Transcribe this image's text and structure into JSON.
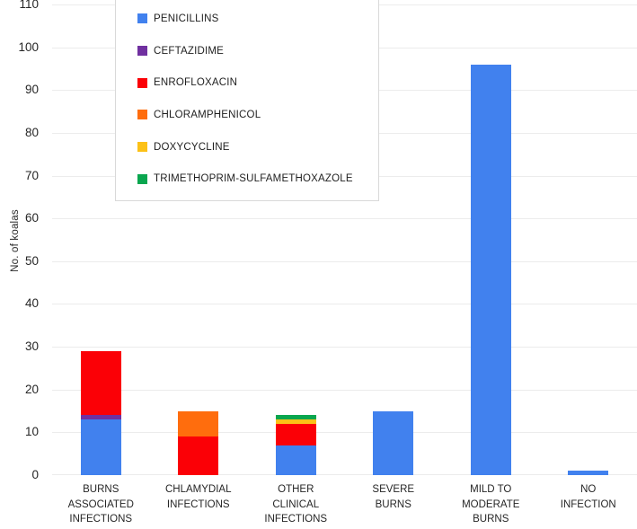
{
  "chart_data": {
    "type": "bar",
    "stacked": true,
    "title": "",
    "xlabel": "",
    "ylabel": "No. of koalas",
    "ylim": [
      0,
      110
    ],
    "yticks": [
      0,
      10,
      20,
      30,
      40,
      50,
      60,
      70,
      80,
      90,
      100,
      110
    ],
    "grid": true,
    "legend_position": "top-left boxed",
    "categories": [
      "BURNS ASSOCIATED INFECTIONS",
      "CHLAMYDIAL INFECTIONS",
      "OTHER CLINICAL INFECTIONS",
      "SEVERE BURNS",
      "MILD TO MODERATE BURNS",
      "NO INFECTION"
    ],
    "category_display_lines": [
      [
        "BURNS",
        "ASSOCIATED",
        "INFECTIONS"
      ],
      [
        "CHLAMYDIAL",
        "INFECTIONS"
      ],
      [
        "OTHER",
        "CLINICAL",
        "INFECTIONS"
      ],
      [
        "SEVERE",
        "BURNS"
      ],
      [
        "MILD TO",
        "MODERATE",
        "BURNS"
      ],
      [
        "NO",
        "INFECTION"
      ]
    ],
    "series": [
      {
        "name": "PENICILLINS",
        "color": "#4181ee",
        "values": [
          13,
          0,
          7,
          15,
          96,
          1
        ]
      },
      {
        "name": "CEFTAZIDIME",
        "color": "#7030a0",
        "values": [
          1,
          0,
          0,
          0,
          0,
          0
        ]
      },
      {
        "name": "ENROFLOXACIN",
        "color": "#fb0006",
        "values": [
          15,
          9,
          5,
          0,
          0,
          0
        ]
      },
      {
        "name": "CHLORAMPHENICOL",
        "color": "#ff6d0d",
        "values": [
          0,
          6,
          0,
          0,
          0,
          0
        ]
      },
      {
        "name": "DOXYCYCLINE",
        "color": "#fcc117",
        "values": [
          0,
          0,
          1,
          0,
          0,
          0
        ]
      },
      {
        "name": "TRIMETHOPRIM-SULFAMETHOXAZOLE",
        "color": "#0aa64f",
        "values": [
          0,
          0,
          1,
          0,
          0,
          0
        ]
      }
    ],
    "bar_totals": [
      29,
      15,
      14,
      15,
      96,
      1
    ]
  },
  "colors": {
    "background": "#ffffff",
    "gridline": "#ececec",
    "axis_text": "#262626",
    "legend_border": "#d9d9d9"
  }
}
